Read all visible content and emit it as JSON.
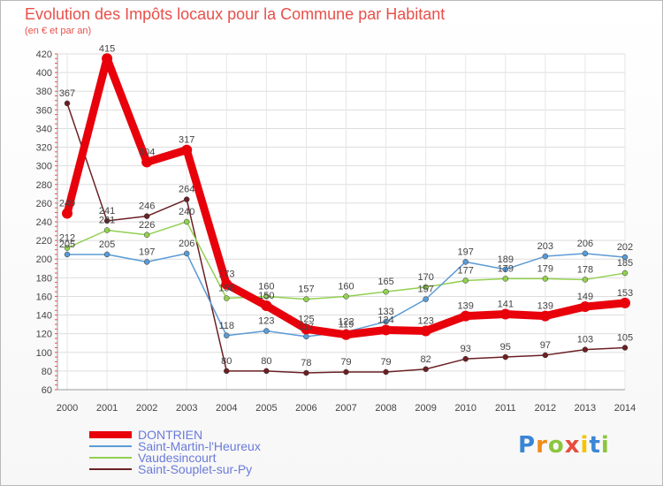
{
  "chart_data": {
    "type": "line",
    "title": "Evolution des Impôts locaux pour la Commune par Habitant",
    "subtitle": "(en € et par an)",
    "x": [
      "2000",
      "2001",
      "2002",
      "2003",
      "2004",
      "2005",
      "2006",
      "2007",
      "2008",
      "2009",
      "2010",
      "2011",
      "2012",
      "2013",
      "2014"
    ],
    "ylim": [
      60,
      420
    ],
    "yticks": [
      60,
      80,
      100,
      120,
      140,
      160,
      180,
      200,
      220,
      240,
      260,
      280,
      300,
      320,
      340,
      360,
      380,
      400,
      420
    ],
    "grid": true,
    "legend_position": "bottom-left",
    "series": [
      {
        "name": "DONTRIEN",
        "color": "#e8000b",
        "values": [
          249,
          415,
          304,
          317,
          173,
          150,
          125,
          119,
          124,
          123,
          139,
          141,
          139,
          149,
          153
        ]
      },
      {
        "name": "Saint-Martin-l'Heureux",
        "color": "#5b9bd5",
        "values": [
          205,
          205,
          197,
          206,
          118,
          123,
          117,
          122,
          133,
          157,
          197,
          189,
          203,
          206,
          202
        ]
      },
      {
        "name": "Vaudesincourt",
        "color": "#92d050",
        "values": [
          212,
          231,
          226,
          240,
          158,
          160,
          157,
          160,
          165,
          170,
          177,
          179,
          179,
          178,
          185
        ]
      },
      {
        "name": "Saint-Souplet-sur-Py",
        "color": "#6b2024",
        "values": [
          367,
          241,
          246,
          264,
          80,
          80,
          78,
          79,
          79,
          82,
          93,
          95,
          97,
          103,
          105
        ]
      }
    ]
  },
  "brand": {
    "letters": [
      "P",
      "r",
      "o",
      "x",
      "i",
      "t",
      "i"
    ],
    "colors": [
      "#3a86d6",
      "#f28c18",
      "#8cc63f",
      "#e84c3d",
      "#f5c400",
      "#3a86d6",
      "#8cc63f"
    ]
  }
}
